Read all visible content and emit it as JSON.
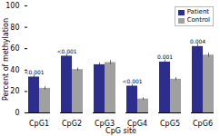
{
  "chart_data": {
    "type": "bar",
    "categories": [
      "CpG1",
      "CpG2",
      "CpG3",
      "CpG4",
      "CpG5",
      "CpG6"
    ],
    "series": [
      {
        "name": "Patient",
        "color": "#2D2D8C",
        "values": [
          33.5,
          53.0,
          45.0,
          25.0,
          47.5,
          62.0
        ],
        "errors": [
          2.0,
          1.8,
          1.8,
          1.5,
          2.0,
          2.0
        ],
        "labels": [
          "<0.001",
          "<0.001",
          null,
          "<0.001",
          "0.001",
          "0.004"
        ]
      },
      {
        "name": "Control",
        "color": "#A0A0A0",
        "values": [
          23.0,
          40.5,
          47.0,
          13.0,
          31.5,
          54.0
        ],
        "errors": [
          1.5,
          1.5,
          2.0,
          1.2,
          1.5,
          2.0
        ]
      }
    ],
    "xlabel": "CpG site",
    "ylabel": "Percent of methylation",
    "ylim": [
      0,
      100
    ],
    "yticks": [
      0,
      20,
      40,
      60,
      80,
      100
    ],
    "grid": false,
    "legend": "upper right"
  }
}
